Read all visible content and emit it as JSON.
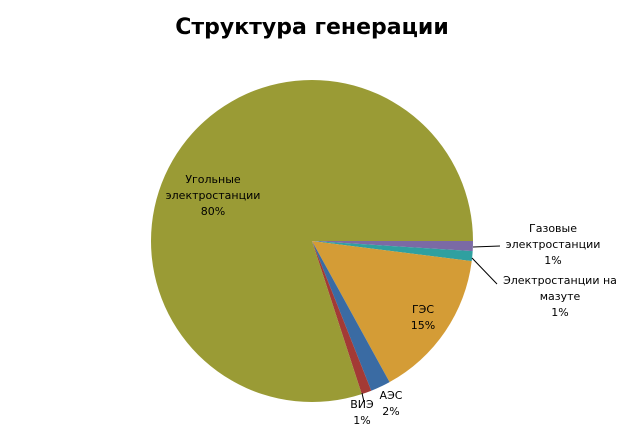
{
  "chart_data": {
    "type": "pie",
    "title": "Структура генерации",
    "categories": [
      "Газовые электростанции",
      "Электростанции на мазуте",
      "ГЭС",
      "АЭС",
      "ВИЭ",
      "Угольные электростанции"
    ],
    "values": [
      1,
      1,
      15,
      2,
      1,
      80
    ],
    "value_labels": [
      "1%",
      "1%",
      "15%",
      "2%",
      "1%",
      "80%"
    ],
    "colors": [
      "#7b6aa5",
      "#2fa0a0",
      "#d49c36",
      "#3a6ba3",
      "#a33a35",
      "#9a9b35"
    ]
  }
}
